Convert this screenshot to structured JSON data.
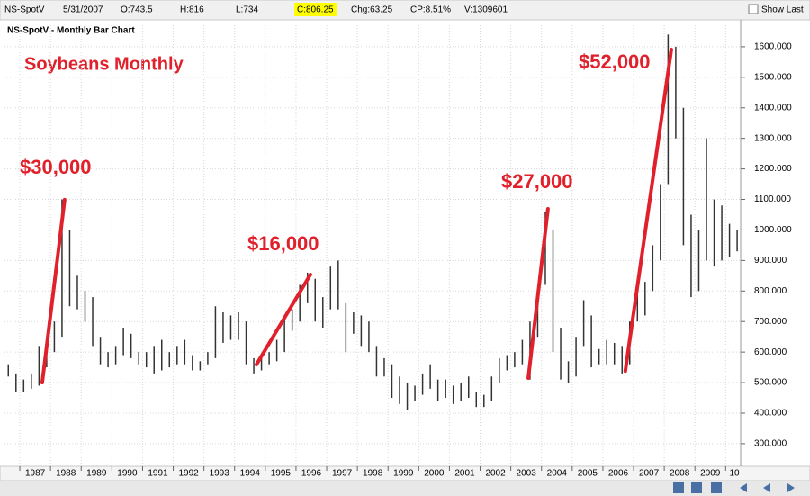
{
  "header": {
    "symbol": "NS-SpotV",
    "date": "5/31/2007",
    "open": "O:743.5",
    "high": "H:816",
    "low": "L:734",
    "close": "C:806.25",
    "change": "Chg:63.25",
    "change_pct": "CP:8.51%",
    "volume": "V:1309601",
    "show_last": "Show Last"
  },
  "chart_data": {
    "type": "range-bar",
    "title": "NS-SpotV - Monthly Bar Chart",
    "subtitle": "Soybeans Monthly",
    "color": "#333333",
    "grid": true,
    "x": [
      1986.625,
      1986.875,
      1987.125,
      1987.375,
      1987.625,
      1987.875,
      1988.125,
      1988.375,
      1988.625,
      1988.875,
      1989.125,
      1989.375,
      1989.625,
      1989.875,
      1990.125,
      1990.375,
      1990.625,
      1990.875,
      1991.125,
      1991.375,
      1991.625,
      1991.875,
      1992.125,
      1992.375,
      1992.625,
      1992.875,
      1993.125,
      1993.375,
      1993.625,
      1993.875,
      1994.125,
      1994.375,
      1994.625,
      1994.875,
      1995.125,
      1995.375,
      1995.625,
      1995.875,
      1996.125,
      1996.375,
      1996.625,
      1996.875,
      1997.125,
      1997.375,
      1997.625,
      1997.875,
      1998.125,
      1998.375,
      1998.625,
      1998.875,
      1999.125,
      1999.375,
      1999.625,
      1999.875,
      2000.125,
      2000.375,
      2000.625,
      2000.875,
      2001.125,
      2001.375,
      2001.625,
      2001.875,
      2002.125,
      2002.375,
      2002.625,
      2002.875,
      2003.125,
      2003.375,
      2003.625,
      2003.875,
      2004.125,
      2004.375,
      2004.625,
      2004.875,
      2005.125,
      2005.375,
      2005.625,
      2005.875,
      2006.125,
      2006.375,
      2006.625,
      2006.875,
      2007.125,
      2007.375,
      2007.625,
      2007.875,
      2008.125,
      2008.375,
      2008.625,
      2008.875,
      2009.125,
      2009.375,
      2009.625,
      2009.875,
      2010.125,
      2010.375
    ],
    "high": [
      560,
      530,
      510,
      530,
      620,
      630,
      700,
      1100,
      1000,
      850,
      800,
      780,
      650,
      600,
      620,
      680,
      660,
      600,
      600,
      620,
      640,
      600,
      620,
      640,
      590,
      570,
      600,
      750,
      730,
      720,
      730,
      700,
      580,
      590,
      600,
      640,
      720,
      740,
      820,
      860,
      840,
      780,
      880,
      900,
      760,
      730,
      720,
      700,
      620,
      580,
      560,
      520,
      500,
      490,
      530,
      560,
      510,
      510,
      490,
      500,
      520,
      470,
      460,
      520,
      580,
      590,
      600,
      640,
      700,
      790,
      1060,
      1000,
      680,
      570,
      650,
      770,
      720,
      610,
      640,
      630,
      620,
      700,
      800,
      830,
      950,
      1150,
      1640,
      1600,
      1400,
      1050,
      1000,
      1300,
      1100,
      1080,
      1020,
      1000
    ],
    "low": [
      520,
      470,
      470,
      480,
      490,
      550,
      600,
      650,
      750,
      740,
      700,
      620,
      560,
      550,
      560,
      590,
      580,
      560,
      550,
      530,
      540,
      550,
      560,
      560,
      540,
      540,
      560,
      580,
      630,
      640,
      640,
      560,
      530,
      540,
      560,
      570,
      600,
      670,
      700,
      760,
      700,
      680,
      740,
      740,
      600,
      660,
      620,
      600,
      520,
      520,
      450,
      430,
      410,
      440,
      460,
      480,
      440,
      450,
      430,
      440,
      450,
      420,
      420,
      440,
      500,
      540,
      550,
      560,
      510,
      650,
      820,
      600,
      510,
      500,
      520,
      620,
      550,
      560,
      560,
      560,
      530,
      560,
      700,
      720,
      800,
      900,
      1150,
      1300,
      950,
      780,
      800,
      900,
      880,
      900,
      910,
      930
    ],
    "xlim": [
      1986.5,
      2010.46
    ],
    "ylim": [
      226,
      1641
    ],
    "xticks": [
      1987,
      1988,
      1989,
      1990,
      1991,
      1992,
      1993,
      1994,
      1995,
      1996,
      1997,
      1998,
      1999,
      2000,
      2001,
      2002,
      2003,
      2004,
      2005,
      2006,
      2007,
      2008,
      2009,
      {
        "value": 2010,
        "label": "10"
      }
    ],
    "yticks": [
      {
        "value": 300,
        "label": "300.000"
      },
      {
        "value": 400,
        "label": "400.000"
      },
      {
        "value": 500,
        "label": "500.000"
      },
      {
        "value": 600,
        "label": "600.000"
      },
      {
        "value": 700,
        "label": "700.000"
      },
      {
        "value": 800,
        "label": "800.000"
      },
      {
        "value": 900,
        "label": "900.000"
      },
      {
        "value": 1000,
        "label": "1000.000"
      },
      {
        "value": 1100,
        "label": "1100.000"
      },
      {
        "value": 1200,
        "label": "1200.000"
      },
      {
        "value": 1300,
        "label": "1300.000"
      },
      {
        "value": 1400,
        "label": "1400.000"
      },
      {
        "value": 1500,
        "label": "1500.000"
      },
      {
        "value": 1600,
        "label": "1600.000"
      }
    ],
    "annotations": [
      {
        "label": "$30,000",
        "color": "#e0202a",
        "from": [
          1987.73,
          500
        ],
        "to": [
          1988.46,
          1099
        ]
      },
      {
        "label": "$16,000",
        "color": "#e0202a",
        "from": [
          1994.71,
          559
        ],
        "to": [
          1996.47,
          854
        ]
      },
      {
        "label": "$27,000",
        "color": "#e0202a",
        "from": [
          2003.57,
          515
        ],
        "to": [
          2004.21,
          1069
        ]
      },
      {
        "label": "$52,000",
        "color": "#e0202a",
        "from": [
          2006.73,
          538
        ],
        "to": [
          2008.23,
          1591
        ]
      }
    ]
  }
}
